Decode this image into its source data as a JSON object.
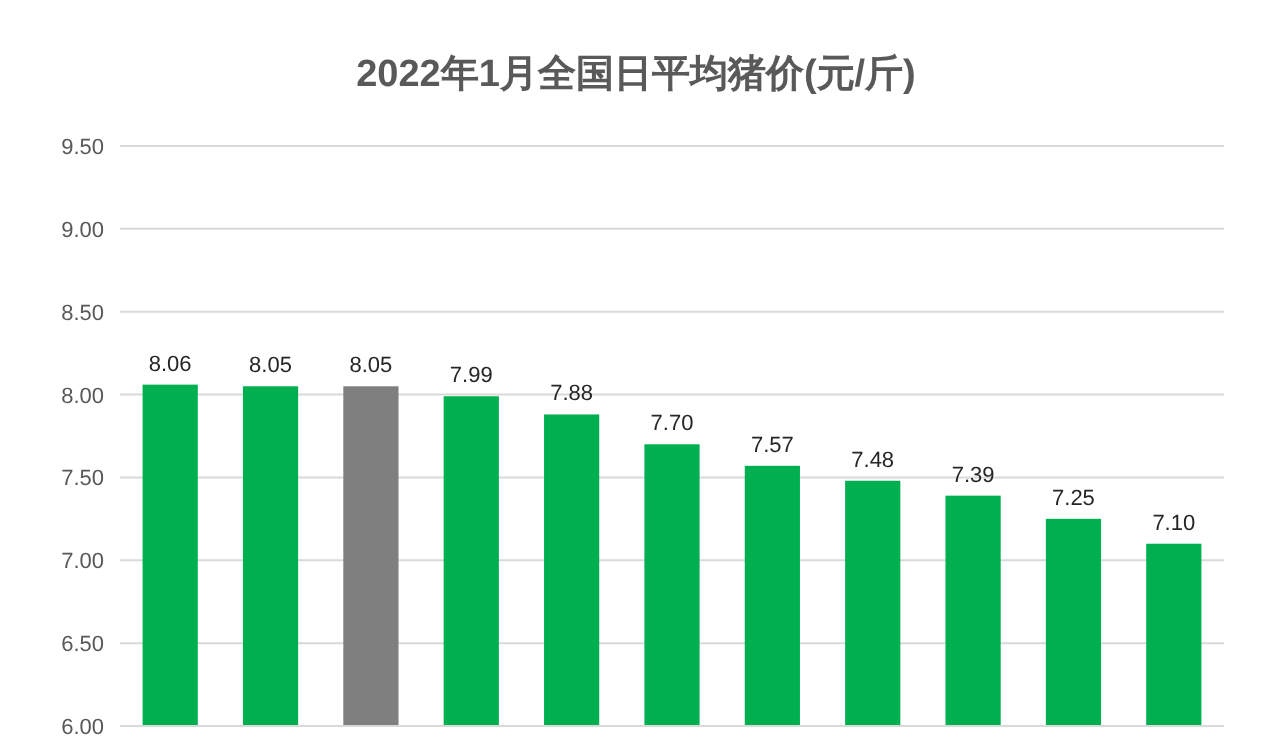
{
  "chart_data": {
    "type": "bar",
    "title": "2022年1月全国日平均猪价(元/斤)",
    "categories": [
      null,
      null,
      null,
      null,
      null,
      null,
      null,
      null,
      null,
      null,
      null
    ],
    "values": [
      8.06,
      8.05,
      8.05,
      7.99,
      7.88,
      7.7,
      7.57,
      7.48,
      7.39,
      7.25,
      7.1
    ],
    "value_labels": [
      "8.06",
      "8.05",
      "8.05",
      "7.99",
      "7.88",
      "7.70",
      "7.57",
      "7.48",
      "7.39",
      "7.25",
      "7.10"
    ],
    "colors": [
      "#00b050",
      "#00b050",
      "#7f7f7f",
      "#00b050",
      "#00b050",
      "#00b050",
      "#00b050",
      "#00b050",
      "#00b050",
      "#00b050",
      "#00b050"
    ],
    "ylim": [
      6,
      9.5
    ],
    "yticks": [
      {
        "value": 6,
        "label": "6.00"
      },
      {
        "value": 6.5,
        "label": "6.50"
      },
      {
        "value": 7,
        "label": "7.00"
      },
      {
        "value": 7.5,
        "label": "7.50"
      },
      {
        "value": 8,
        "label": "8.00"
      },
      {
        "value": 8.5,
        "label": "8.50"
      },
      {
        "value": 9,
        "label": "9.00"
      },
      {
        "value": 9.5,
        "label": "9.50"
      }
    ],
    "grid": "y"
  }
}
